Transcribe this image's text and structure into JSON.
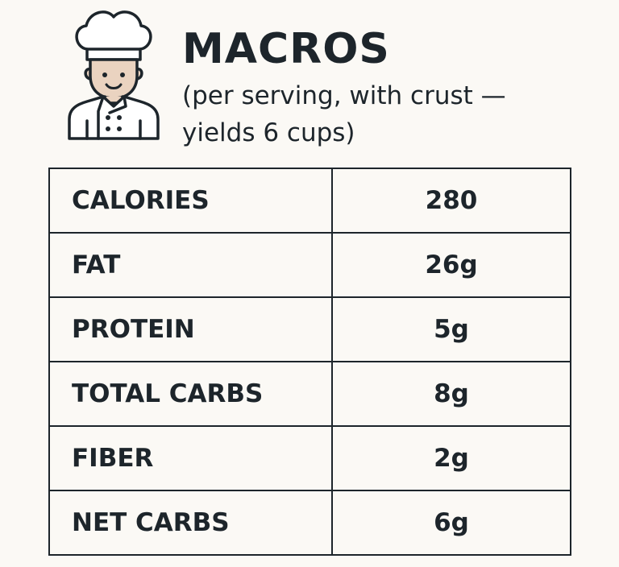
{
  "header": {
    "title": "MACROS",
    "subtitle": "(per serving, with crust — yields 6 cups)",
    "icon": "chef-icon"
  },
  "table": {
    "rows": [
      {
        "label": "CALORIES",
        "value": "280"
      },
      {
        "label": "FAT",
        "value": "26g"
      },
      {
        "label": "PROTEIN",
        "value": "5g"
      },
      {
        "label": "TOTAL CARBS",
        "value": "8g"
      },
      {
        "label": "FIBER",
        "value": "2g"
      },
      {
        "label": "NET CARBS",
        "value": "6g"
      }
    ]
  },
  "colors": {
    "background": "#fbf9f5",
    "ink": "#1d252b",
    "skin": "#ead3c0"
  }
}
